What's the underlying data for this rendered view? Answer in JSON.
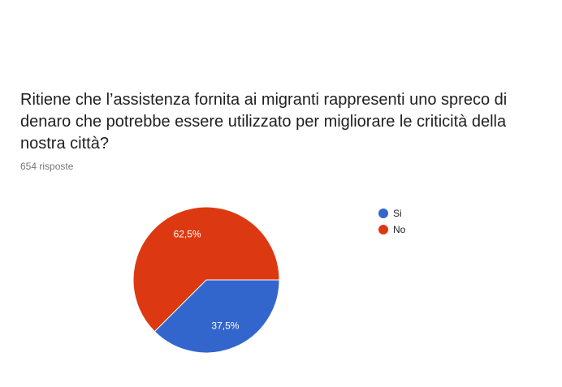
{
  "question": {
    "title": "Ritiene che l’assistenza fornita ai migranti rappresenti uno spreco di denaro che potrebbe essere utilizzato per migliorare le criticità della nostra città?",
    "responses": "654 risposte"
  },
  "chart_data": {
    "type": "pie",
    "title": "Ritiene che l’assistenza fornita ai migranti rappresenti uno spreco di denaro che potrebbe essere utilizzato per migliorare le criticità della nostra città?",
    "categories": [
      "Si",
      "No"
    ],
    "values": [
      37.5,
      62.5
    ],
    "labels": [
      "37,5%",
      "62,5%"
    ],
    "colors": [
      "#3366cc",
      "#dc3912"
    ],
    "legend_position": "right"
  }
}
